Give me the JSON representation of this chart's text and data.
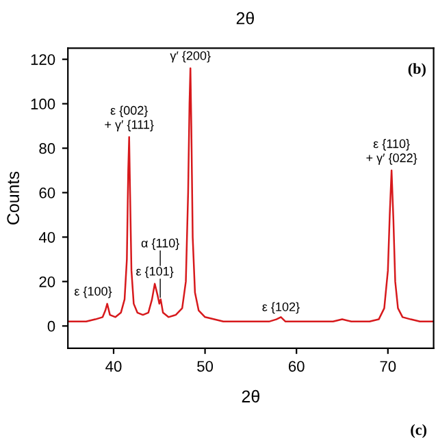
{
  "chart_data": {
    "type": "line",
    "xlabel": "2θ",
    "ylabel": "Counts",
    "color": "#d7191c",
    "x": [
      35,
      36,
      37,
      38,
      38.8,
      39.1,
      39.3,
      39.6,
      40.2,
      40.8,
      41.2,
      41.45,
      41.6,
      41.7,
      41.8,
      41.95,
      42.2,
      42.6,
      43.2,
      43.8,
      44.2,
      44.5,
      44.8,
      45.0,
      45.15,
      45.4,
      46,
      46.8,
      47.5,
      47.9,
      48.15,
      48.3,
      48.4,
      48.5,
      48.65,
      48.9,
      49.3,
      50,
      51,
      52,
      53,
      54,
      55,
      56,
      57,
      57.8,
      58.3,
      58.8,
      60,
      62,
      64,
      65,
      66,
      67,
      68,
      69,
      69.6,
      70,
      70.2,
      70.4,
      70.6,
      70.8,
      71.1,
      71.6,
      72.5,
      73.5,
      74,
      75
    ],
    "values": [
      2,
      2,
      2,
      3,
      4,
      7,
      10,
      5,
      4,
      6,
      12,
      30,
      70,
      85,
      60,
      25,
      10,
      6,
      5,
      6,
      12,
      19,
      14,
      10,
      12,
      6,
      4,
      5,
      8,
      20,
      60,
      100,
      116,
      90,
      40,
      15,
      7,
      4,
      3,
      2,
      2,
      2,
      2,
      2,
      2,
      3,
      4,
      2,
      2,
      2,
      2,
      3,
      2,
      2,
      2,
      3,
      8,
      25,
      50,
      70,
      48,
      20,
      8,
      4,
      3,
      2,
      2,
      2
    ],
    "xlim": [
      35,
      75
    ],
    "ylim": [
      -10,
      125
    ],
    "xticks": [
      40,
      50,
      60,
      70
    ],
    "yticks": [
      0,
      20,
      40,
      60,
      80,
      100,
      120
    ],
    "annotations": [
      {
        "text": "ε {100}",
        "x": 39.2,
        "y": 10
      },
      {
        "text": "ε {002}\n+ γ′ {111}",
        "x": 41.7,
        "y": 85
      },
      {
        "text": "ε {101}",
        "x": 44.5,
        "y": 19
      },
      {
        "text": "α {110}",
        "x": 45.1,
        "y": 12
      },
      {
        "text": "γ′ {200}",
        "x": 48.4,
        "y": 116
      },
      {
        "text": "ε {102}",
        "x": 58.3,
        "y": 3
      },
      {
        "text": "ε {110}\n+ γ′ {022}",
        "x": 70.4,
        "y": 70
      },
      "(b)",
      "2θ",
      "(c)"
    ]
  }
}
